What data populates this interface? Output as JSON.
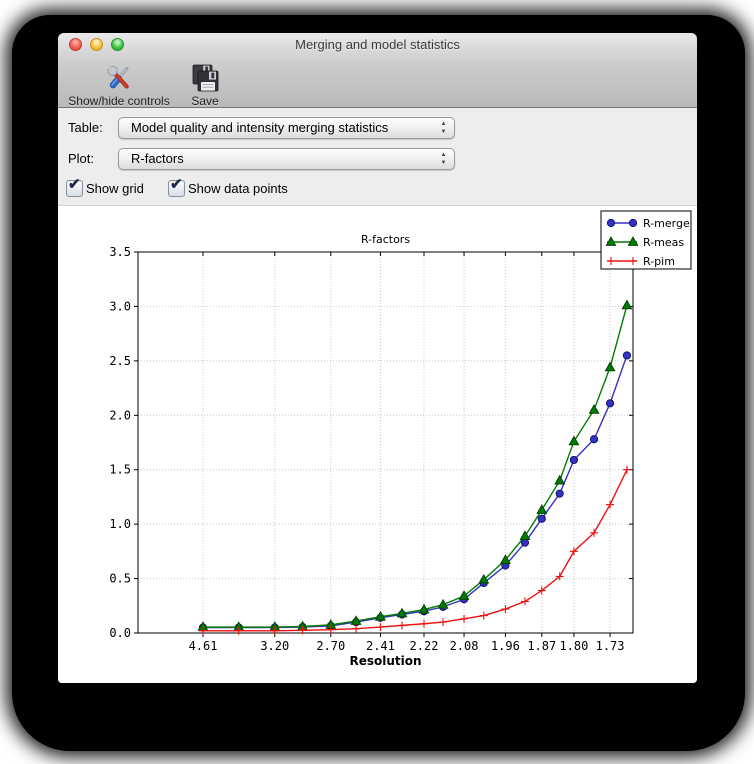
{
  "window": {
    "title": "Merging and model statistics",
    "traffic_lights": [
      {
        "name": "close",
        "color": "#ec5f55"
      },
      {
        "name": "minimize",
        "color": "#f8bd3c"
      },
      {
        "name": "zoom",
        "color": "#3cc440"
      }
    ]
  },
  "toolbar": {
    "items": [
      {
        "label": "Show/hide controls",
        "icon": "tools-icon"
      },
      {
        "label": "Save",
        "icon": "save-icon"
      }
    ]
  },
  "controls": {
    "table_label": "Table:",
    "table_value": "Model quality and intensity merging statistics",
    "plot_label": "Plot:",
    "plot_value": "R-factors",
    "checkboxes": [
      {
        "label": "Show grid",
        "checked": true
      },
      {
        "label": "Show data points",
        "checked": true
      }
    ]
  },
  "icons": {
    "check": "✔",
    "arrow_up": "▲",
    "arrow_down": "▼"
  },
  "chart_data": {
    "type": "line",
    "title": "R-factors",
    "xlabel": "Resolution",
    "ylabel": "",
    "x_axis_scale": "1/d^2 (resolution in Angstrom, 20 equal-count bins)",
    "ylim": [
      0,
      3.5
    ],
    "grid": true,
    "legend_position": "upper-right-outside",
    "resolution_bins_d": [
      4.61,
      3.72,
      3.2,
      2.92,
      2.7,
      2.54,
      2.41,
      2.31,
      2.22,
      2.15,
      2.08,
      2.02,
      1.96,
      1.91,
      1.87,
      1.83,
      1.8,
      1.76,
      1.73,
      1.7
    ],
    "x_tick_bins": [
      0,
      2,
      4,
      6,
      8,
      10,
      12,
      14,
      16,
      18
    ],
    "x_tick_labels": [
      "4.61",
      "3.20",
      "2.70",
      "2.41",
      "2.22",
      "2.08",
      "1.96",
      "1.87",
      "1.80",
      "1.73"
    ],
    "y_tick_labels": [
      "0.0",
      "0.5",
      "1.0",
      "1.5",
      "2.0",
      "2.5",
      "3.0",
      "3.5"
    ],
    "series": [
      {
        "name": "R-merge",
        "marker": "circle",
        "color": "#3431c4",
        "marker_edge": "#14126e",
        "values": [
          0.05,
          0.05,
          0.05,
          0.055,
          0.065,
          0.1,
          0.14,
          0.17,
          0.2,
          0.24,
          0.31,
          0.46,
          0.62,
          0.83,
          1.05,
          1.28,
          1.59,
          1.78,
          2.11,
          2.55
        ]
      },
      {
        "name": "R-meas",
        "marker": "triangle",
        "color": "#007c00",
        "marker_edge": "#004400",
        "values": [
          0.055,
          0.055,
          0.055,
          0.06,
          0.075,
          0.11,
          0.15,
          0.18,
          0.215,
          0.26,
          0.34,
          0.49,
          0.67,
          0.89,
          1.13,
          1.4,
          1.76,
          2.05,
          2.44,
          3.01
        ]
      },
      {
        "name": "R-pim",
        "marker": "plus",
        "color": "#ee1111",
        "marker_edge": "#ee1111",
        "values": [
          0.02,
          0.02,
          0.02,
          0.025,
          0.03,
          0.04,
          0.055,
          0.07,
          0.085,
          0.1,
          0.13,
          0.16,
          0.22,
          0.29,
          0.39,
          0.52,
          0.75,
          0.92,
          1.18,
          1.5
        ]
      }
    ]
  }
}
